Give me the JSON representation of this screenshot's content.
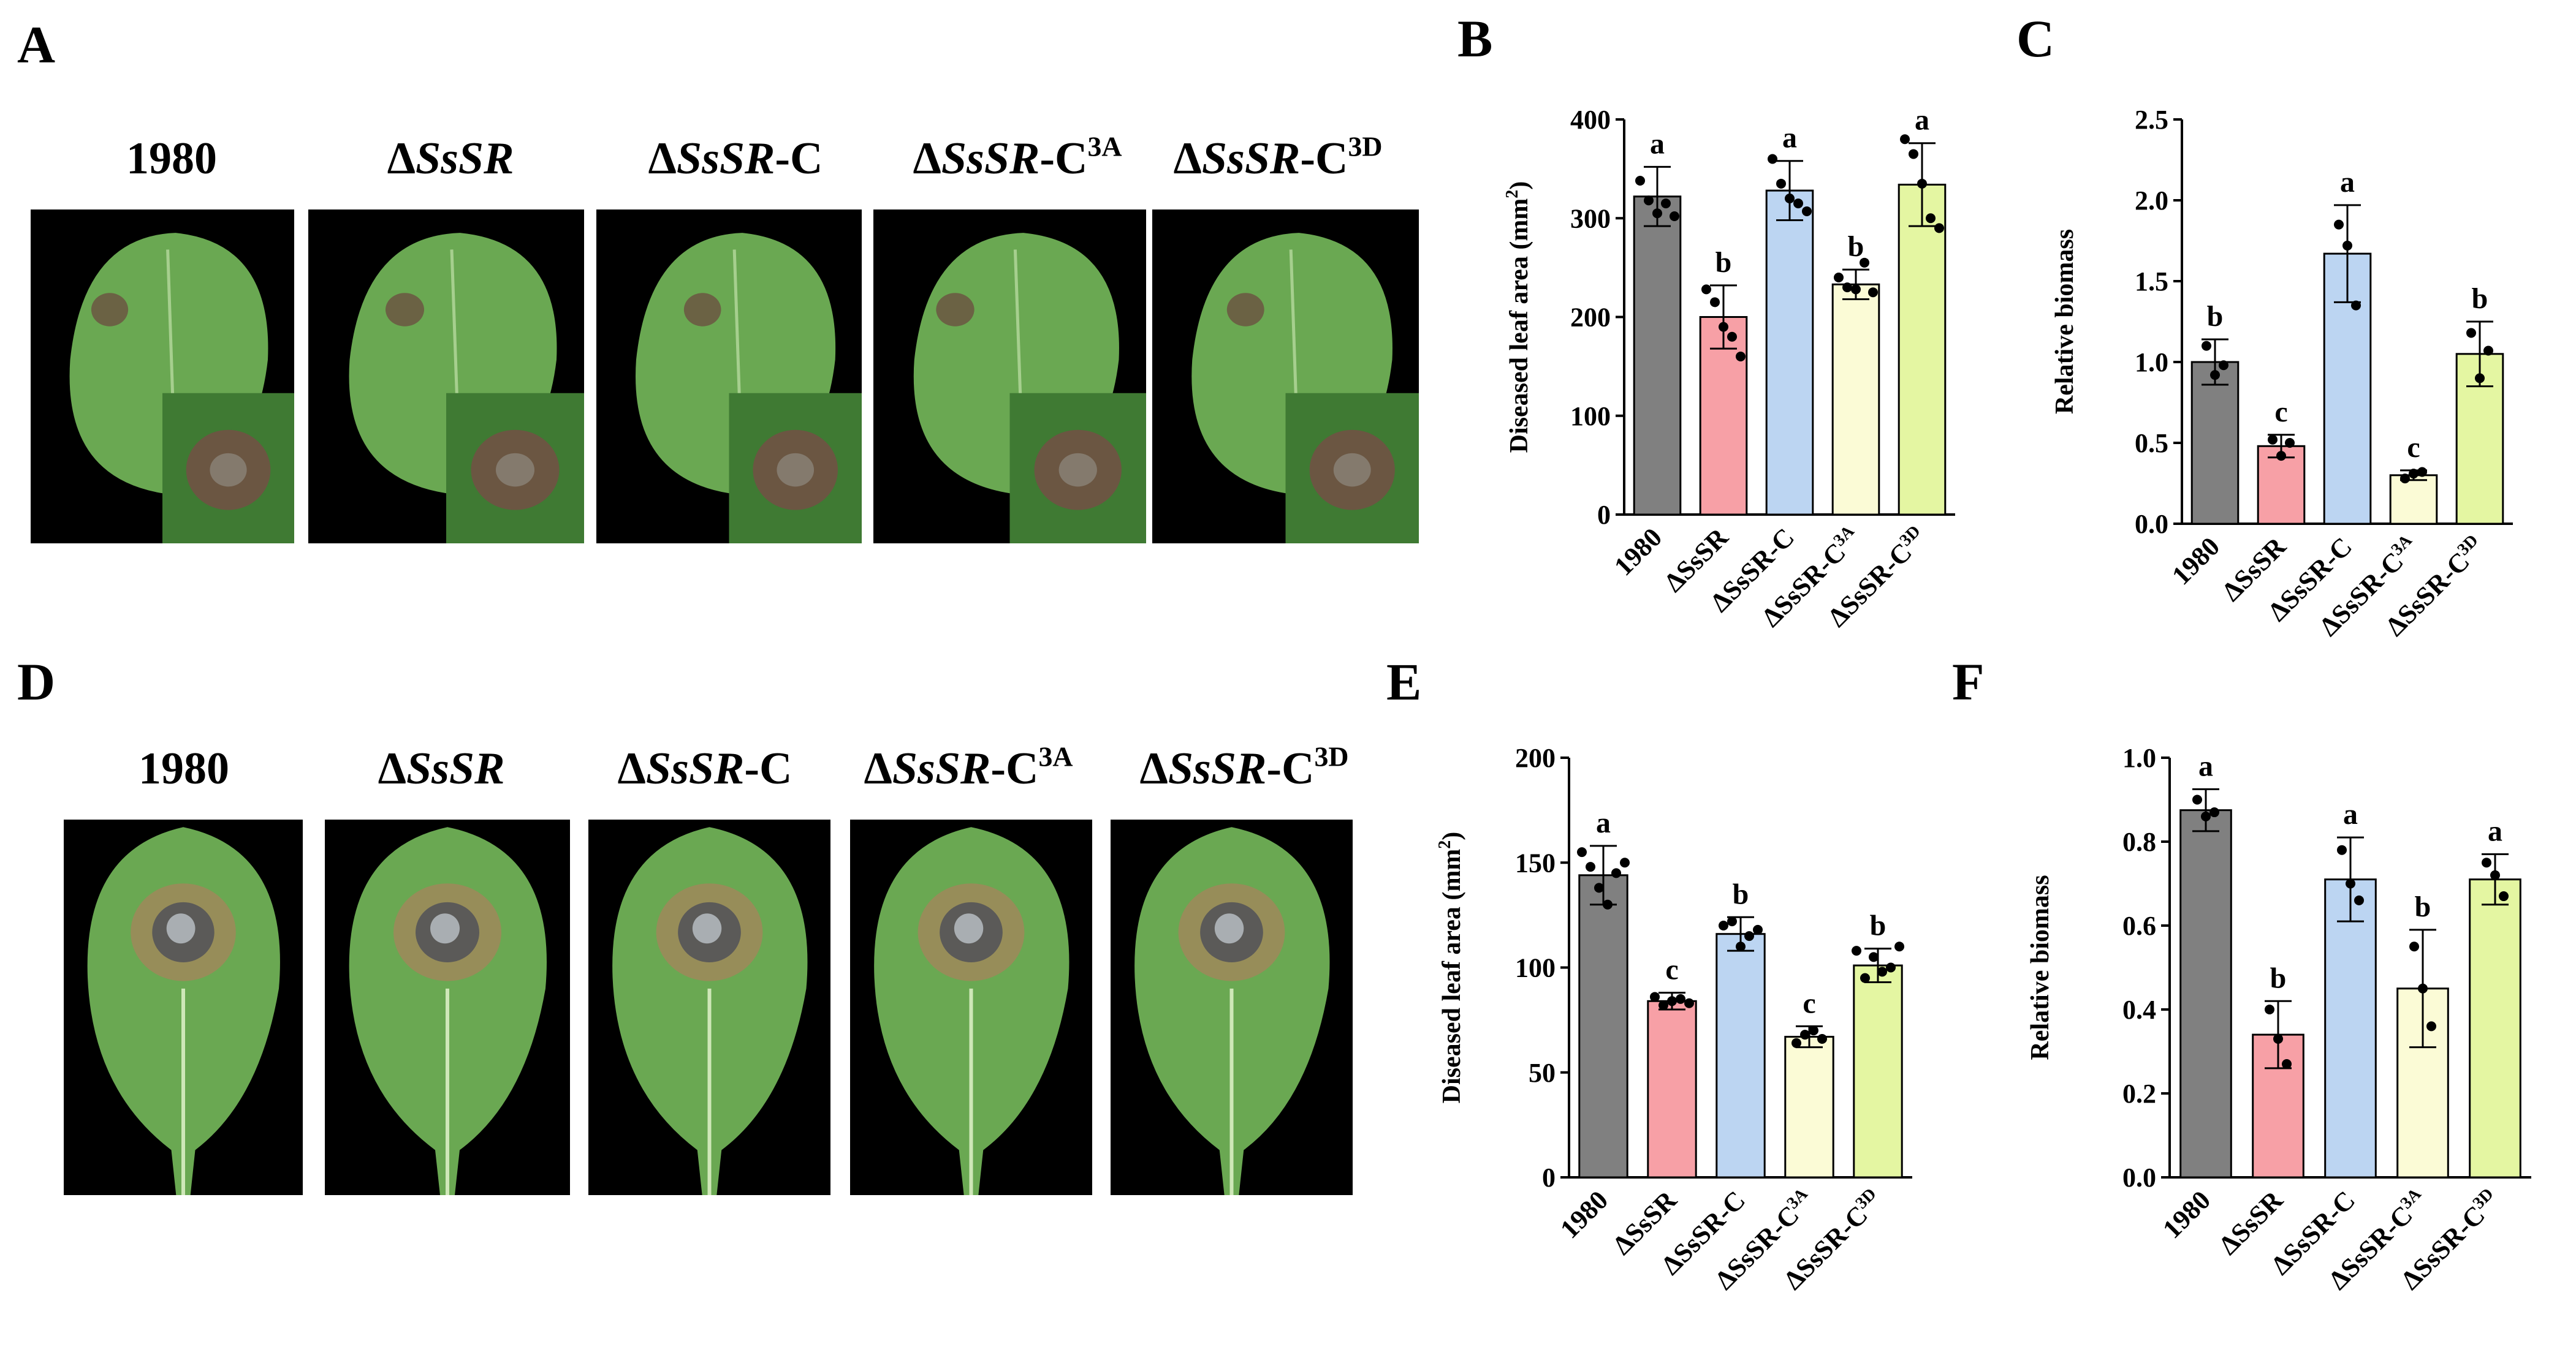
{
  "panels": {
    "A": {
      "letter": "A",
      "labels": [
        {
          "prefix": "Δ",
          "italic": "",
          "suffix": "",
          "sup": "",
          "plain": "1980"
        },
        {
          "prefix": "Δ",
          "italic": "SsSR",
          "suffix": "",
          "sup": ""
        },
        {
          "prefix": "Δ",
          "italic": "SsSR",
          "suffix": "-C",
          "sup": ""
        },
        {
          "prefix": "Δ",
          "italic": "SsSR",
          "suffix": "-C",
          "sup": "3A"
        },
        {
          "prefix": "Δ",
          "italic": "SsSR",
          "suffix": "-C",
          "sup": "3D"
        }
      ]
    },
    "B": {
      "letter": "B"
    },
    "C": {
      "letter": "C"
    },
    "D": {
      "letter": "D",
      "labels": [
        {
          "prefix": "Δ",
          "italic": "",
          "suffix": "",
          "sup": "",
          "plain": "1980"
        },
        {
          "prefix": "Δ",
          "italic": "SsSR",
          "suffix": "",
          "sup": ""
        },
        {
          "prefix": "Δ",
          "italic": "SsSR",
          "suffix": "-C",
          "sup": ""
        },
        {
          "prefix": "Δ",
          "italic": "SsSR",
          "suffix": "-C",
          "sup": "3A"
        },
        {
          "prefix": "Δ",
          "italic": "SsSR",
          "suffix": "-C",
          "sup": "3D"
        }
      ]
    },
    "E": {
      "letter": "E"
    },
    "F": {
      "letter": "F"
    }
  },
  "colors": {
    "bars": [
      "#808080",
      "#f7a0a6",
      "#bcd5f2",
      "#fbfbd6",
      "#e4f6a2"
    ],
    "leaf_light": "#6aa852",
    "leaf_dark": "#3f7a33",
    "lesion": "#6b5642"
  },
  "chart_data": [
    {
      "id": "B",
      "type": "bar",
      "categories": [
        {
          "base": "1980",
          "sup": ""
        },
        {
          "base": "ΔSsSR",
          "sup": ""
        },
        {
          "base": "ΔSsSR-C",
          "sup": ""
        },
        {
          "base": "ΔSsSR-C",
          "sup": "3A"
        },
        {
          "base": "ΔSsSR-C",
          "sup": "3D"
        }
      ],
      "values": [
        322,
        200,
        328,
        233,
        334
      ],
      "errors": [
        30,
        32,
        30,
        15,
        42
      ],
      "points": [
        [
          338,
          318,
          305,
          315,
          302
        ],
        [
          228,
          215,
          190,
          180,
          160
        ],
        [
          360,
          335,
          320,
          315,
          307
        ],
        [
          240,
          230,
          228,
          255,
          225
        ],
        [
          380,
          365,
          335,
          300,
          290
        ]
      ],
      "letters": [
        "a",
        "b",
        "a",
        "b",
        "a"
      ],
      "ylabel": "Diseased leaf area (mm",
      "ylabel_sup": "2",
      "ylabel_close": ")",
      "ylim": [
        0,
        400
      ],
      "yticks": [
        0,
        100,
        200,
        300,
        400
      ],
      "ytick_labels": [
        "0",
        "100",
        "200",
        "300",
        "400"
      ]
    },
    {
      "id": "C",
      "type": "bar",
      "categories": [
        {
          "base": "1980",
          "sup": ""
        },
        {
          "base": "ΔSsSR",
          "sup": ""
        },
        {
          "base": "ΔSsSR-C",
          "sup": ""
        },
        {
          "base": "ΔSsSR-C",
          "sup": "3A"
        },
        {
          "base": "ΔSsSR-C",
          "sup": "3D"
        }
      ],
      "values": [
        1.0,
        0.48,
        1.67,
        0.3,
        1.05
      ],
      "errors": [
        0.14,
        0.07,
        0.3,
        0.03,
        0.2
      ],
      "points": [
        [
          1.1,
          0.92,
          0.98
        ],
        [
          0.52,
          0.42,
          0.5
        ],
        [
          1.85,
          1.72,
          1.35
        ],
        [
          0.28,
          0.31,
          0.32
        ],
        [
          1.18,
          0.9,
          1.07
        ]
      ],
      "letters": [
        "b",
        "c",
        "a",
        "c",
        "b"
      ],
      "ylabel": "Relative biomass",
      "ylabel_sup": "",
      "ylabel_close": "",
      "ylim": [
        0,
        2.5
      ],
      "yticks": [
        0,
        0.5,
        1.0,
        1.5,
        2.0,
        2.5
      ],
      "ytick_labels": [
        "0.0",
        "0.5",
        "1.0",
        "1.5",
        "2.0",
        "2.5"
      ]
    },
    {
      "id": "E",
      "type": "bar",
      "categories": [
        {
          "base": "1980",
          "sup": ""
        },
        {
          "base": "ΔSsSR",
          "sup": ""
        },
        {
          "base": "ΔSsSR-C",
          "sup": ""
        },
        {
          "base": "ΔSsSR-C",
          "sup": "3A"
        },
        {
          "base": "ΔSsSR-C",
          "sup": "3D"
        }
      ],
      "values": [
        144,
        84,
        116,
        67,
        101
      ],
      "errors": [
        14,
        4,
        8,
        5,
        8
      ],
      "points": [
        [
          155,
          148,
          138,
          130,
          145,
          150
        ],
        [
          86,
          82,
          84,
          85,
          83
        ],
        [
          120,
          122,
          110,
          115,
          118
        ],
        [
          64,
          68,
          70,
          66
        ],
        [
          108,
          95,
          105,
          98,
          100,
          110
        ]
      ],
      "letters": [
        "a",
        "c",
        "b",
        "c",
        "b"
      ],
      "ylabel": "Diseased leaf area (mm",
      "ylabel_sup": "2",
      "ylabel_close": ")",
      "ylim": [
        0,
        200
      ],
      "yticks": [
        0,
        50,
        100,
        150,
        200
      ],
      "ytick_labels": [
        "0",
        "50",
        "100",
        "150",
        "200"
      ]
    },
    {
      "id": "F",
      "type": "bar",
      "categories": [
        {
          "base": "1980",
          "sup": ""
        },
        {
          "base": "ΔSsSR",
          "sup": ""
        },
        {
          "base": "ΔSsSR-C",
          "sup": ""
        },
        {
          "base": "ΔSsSR-C",
          "sup": "3A"
        },
        {
          "base": "ΔSsSR-C",
          "sup": "3D"
        }
      ],
      "values": [
        0.875,
        0.34,
        0.71,
        0.45,
        0.71
      ],
      "errors": [
        0.05,
        0.08,
        0.1,
        0.14,
        0.06
      ],
      "points": [
        [
          0.9,
          0.86,
          0.87
        ],
        [
          0.4,
          0.33,
          0.27
        ],
        [
          0.78,
          0.7,
          0.66
        ],
        [
          0.55,
          0.45,
          0.36
        ],
        [
          0.75,
          0.72,
          0.67
        ]
      ],
      "letters": [
        "a",
        "b",
        "a",
        "b",
        "a"
      ],
      "ylabel": "Relative biomass",
      "ylabel_sup": "",
      "ylabel_close": "",
      "ylim": [
        0,
        1.0
      ],
      "yticks": [
        0,
        0.2,
        0.4,
        0.6,
        0.8,
        1.0
      ],
      "ytick_labels": [
        "0.0",
        "0.2",
        "0.4",
        "0.6",
        "0.8",
        "1.0"
      ]
    }
  ]
}
